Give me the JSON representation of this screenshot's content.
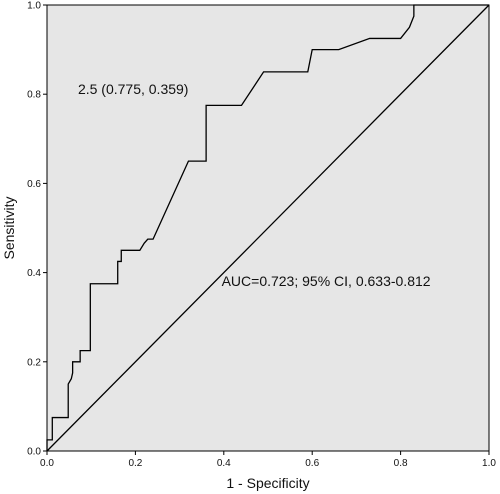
{
  "chart_data": {
    "type": "line",
    "xlabel": "1 - Specificity",
    "ylabel": "Sensitivity",
    "xlim": [
      0,
      1
    ],
    "ylim": [
      0,
      1
    ],
    "xticks": [
      "0.0",
      "0.2",
      "0.4",
      "0.6",
      "0.8",
      "1.0"
    ],
    "yticks": [
      "0.0",
      "0.2",
      "0.4",
      "0.6",
      "0.8",
      "1.0"
    ],
    "grid": false,
    "plot_background": "#e6e6e6",
    "line_color": "#000000",
    "series": [
      {
        "x": [
          0,
          0,
          0.012,
          0.012,
          0.048,
          0.048,
          0.055,
          0.058,
          0.058,
          0.075,
          0.075,
          0.08,
          0.08,
          0.098,
          0.098,
          0.16,
          0.16,
          0.168,
          0.168,
          0.204,
          0.21,
          0.22,
          0.228,
          0.24,
          0.32,
          0.36,
          0.36,
          0.44,
          0.49,
          0.59,
          0.6,
          0.66,
          0.73,
          0.8,
          0.82,
          0.83,
          0.83,
          1
        ],
        "y": [
          0,
          0.025,
          0.025,
          0.075,
          0.075,
          0.15,
          0.162,
          0.175,
          0.2,
          0.2,
          0.225,
          0.225,
          0.225,
          0.225,
          0.375,
          0.375,
          0.425,
          0.425,
          0.45,
          0.45,
          0.45,
          0.466,
          0.475,
          0.475,
          0.65,
          0.65,
          0.775,
          0.775,
          0.85,
          0.85,
          0.9,
          0.9,
          0.925,
          0.925,
          0.95,
          0.975,
          1,
          1
        ]
      },
      {
        "x": [
          0,
          1
        ],
        "y": [
          0,
          1
        ]
      }
    ],
    "annotations": [
      {
        "text": "2.5 (0.775, 0.359)",
        "x": 0.07,
        "y": 0.8
      },
      {
        "text": "AUC=0.723; 95% CI, 0.633-0.812",
        "x": 0.395,
        "y": 0.37
      }
    ]
  }
}
